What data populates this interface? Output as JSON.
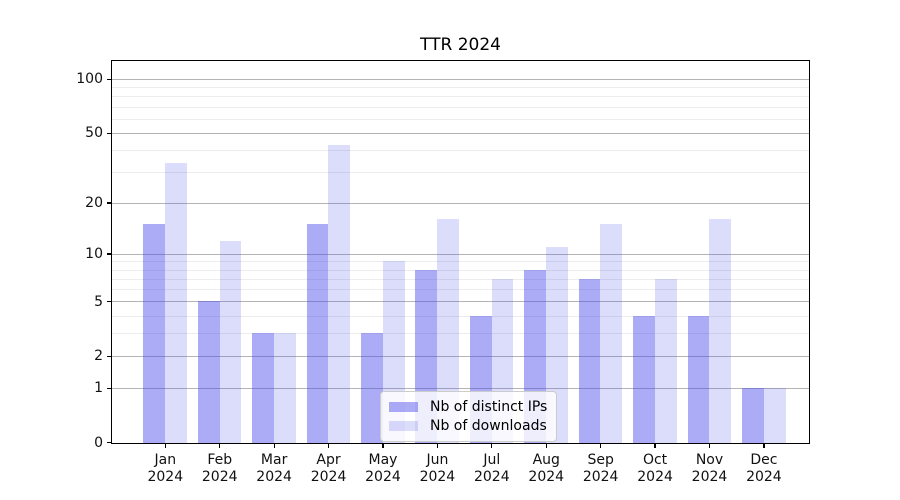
{
  "chart_data": {
    "type": "bar",
    "title": "TTR 2024",
    "categories": [
      "Jan",
      "Feb",
      "Mar",
      "Apr",
      "May",
      "Jun",
      "Jul",
      "Aug",
      "Sep",
      "Oct",
      "Nov",
      "Dec"
    ],
    "year": "2024",
    "series": [
      {
        "name": "Nb of distinct IPs",
        "values": [
          15,
          5,
          3,
          15,
          3,
          8,
          4,
          8,
          7,
          4,
          4,
          1
        ]
      },
      {
        "name": "Nb of downloads",
        "values": [
          34,
          12,
          3,
          43,
          9,
          16,
          7,
          11,
          15,
          7,
          16,
          1
        ]
      }
    ],
    "y_axis": {
      "scale": "log1p",
      "major_ticks": [
        0,
        1,
        2,
        5,
        10,
        20,
        50,
        100
      ],
      "minor_gridlines": [
        3,
        4,
        6,
        7,
        8,
        9,
        30,
        40,
        60,
        70,
        80,
        90
      ],
      "ylim": [
        0,
        100
      ]
    },
    "grid": true,
    "legend_position": "lower-center-inside"
  },
  "colors": {
    "bar_base": "#4646EB",
    "alpha_distinct_ips": 0.45,
    "alpha_downloads": 0.19,
    "grid_major": "#B4B4B4",
    "grid_minor": "#ECECEC",
    "spine": "#000000",
    "legend_border": "#CCCCCC",
    "text": "#111111"
  }
}
